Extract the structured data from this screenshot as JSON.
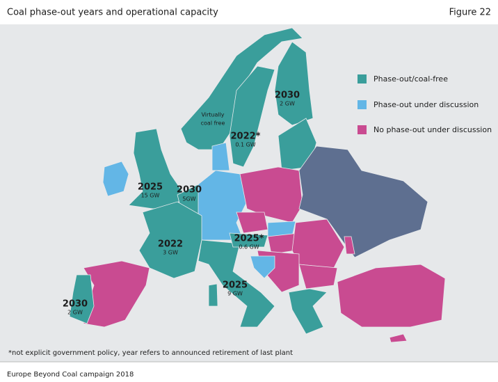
{
  "header": {
    "title": "Coal phase-out years and operational capacity",
    "figure": "Figure 22"
  },
  "legend": [
    {
      "label": "Phase-out/coal-free",
      "color": "#3a9e9b"
    },
    {
      "label": "Phase-out under discussion",
      "color": "#63b6e6"
    },
    {
      "label": "No phase-out under discussion",
      "color": "#c94b91"
    }
  ],
  "annotations": [
    {
      "year": "2030",
      "capacity": "2 GW"
    },
    {
      "year": "2022*",
      "capacity": "0.1 GW"
    },
    {
      "year": "2025",
      "capacity": "15 GW"
    },
    {
      "year": "2030",
      "capacity": "5GW"
    },
    {
      "year": "2022",
      "capacity": "3 GW"
    },
    {
      "year": "2025*",
      "capacity": "0.6 GW"
    },
    {
      "year": "2025",
      "capacity": "9 GW"
    },
    {
      "year": "2030",
      "capacity": "2 GW"
    }
  ],
  "virtually": [
    "Virtually",
    "coal free"
  ],
  "footnote": "*not explicit government policy, year refers to announced retirement of last plant",
  "source": "Europe Beyond Coal campaign 2018"
}
